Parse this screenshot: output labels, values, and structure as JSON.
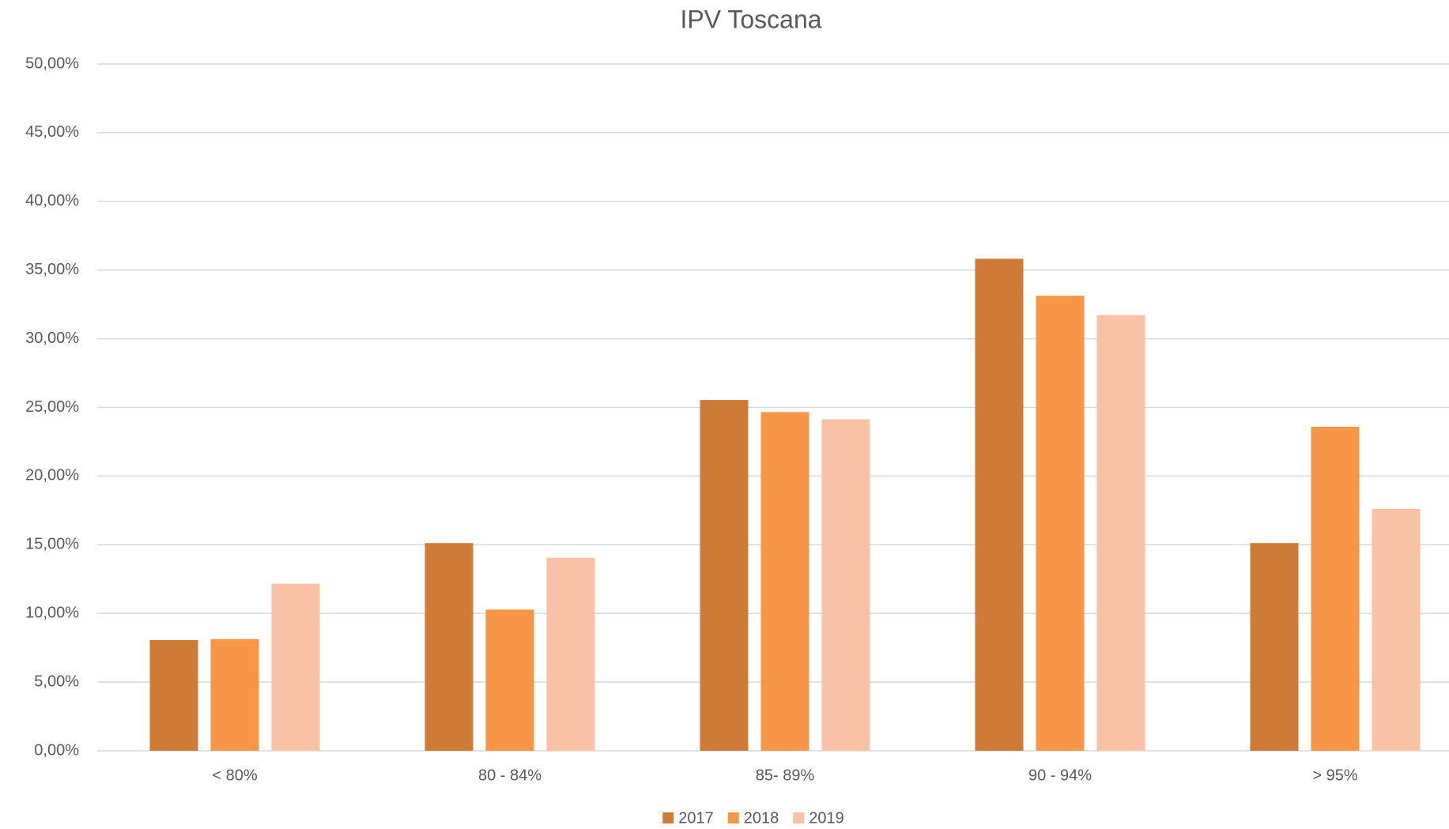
{
  "chart_data": {
    "type": "bar",
    "title": "IPV Toscana",
    "categories": [
      "< 80%",
      "80 - 84%",
      "85- 89%",
      "90 - 94%",
      "> 95%"
    ],
    "series": [
      {
        "name": "2017",
        "color": "#cd7b37",
        "values": [
          8.06,
          15.12,
          25.54,
          35.82,
          15.12
        ]
      },
      {
        "name": "2018",
        "color": "#f79646",
        "values": [
          8.13,
          10.28,
          24.66,
          33.13,
          23.59
        ]
      },
      {
        "name": "2019",
        "color": "#f9c1a6",
        "values": [
          12.16,
          14.05,
          24.13,
          31.72,
          17.61
        ]
      }
    ],
    "ylim": [
      0,
      50
    ],
    "yticks": [
      {
        "value": 0,
        "label": "0,00%"
      },
      {
        "value": 5,
        "label": "5,00%"
      },
      {
        "value": 10,
        "label": "10,00%"
      },
      {
        "value": 15,
        "label": "15,00%"
      },
      {
        "value": 20,
        "label": "20,00%"
      },
      {
        "value": 25,
        "label": "25,00%"
      },
      {
        "value": 30,
        "label": "30,00%"
      },
      {
        "value": 35,
        "label": "35,00%"
      },
      {
        "value": 40,
        "label": "40,00%"
      },
      {
        "value": 45,
        "label": "45,00%"
      },
      {
        "value": 50,
        "label": "50,00%"
      }
    ],
    "grid": true,
    "legend": "bottom"
  }
}
